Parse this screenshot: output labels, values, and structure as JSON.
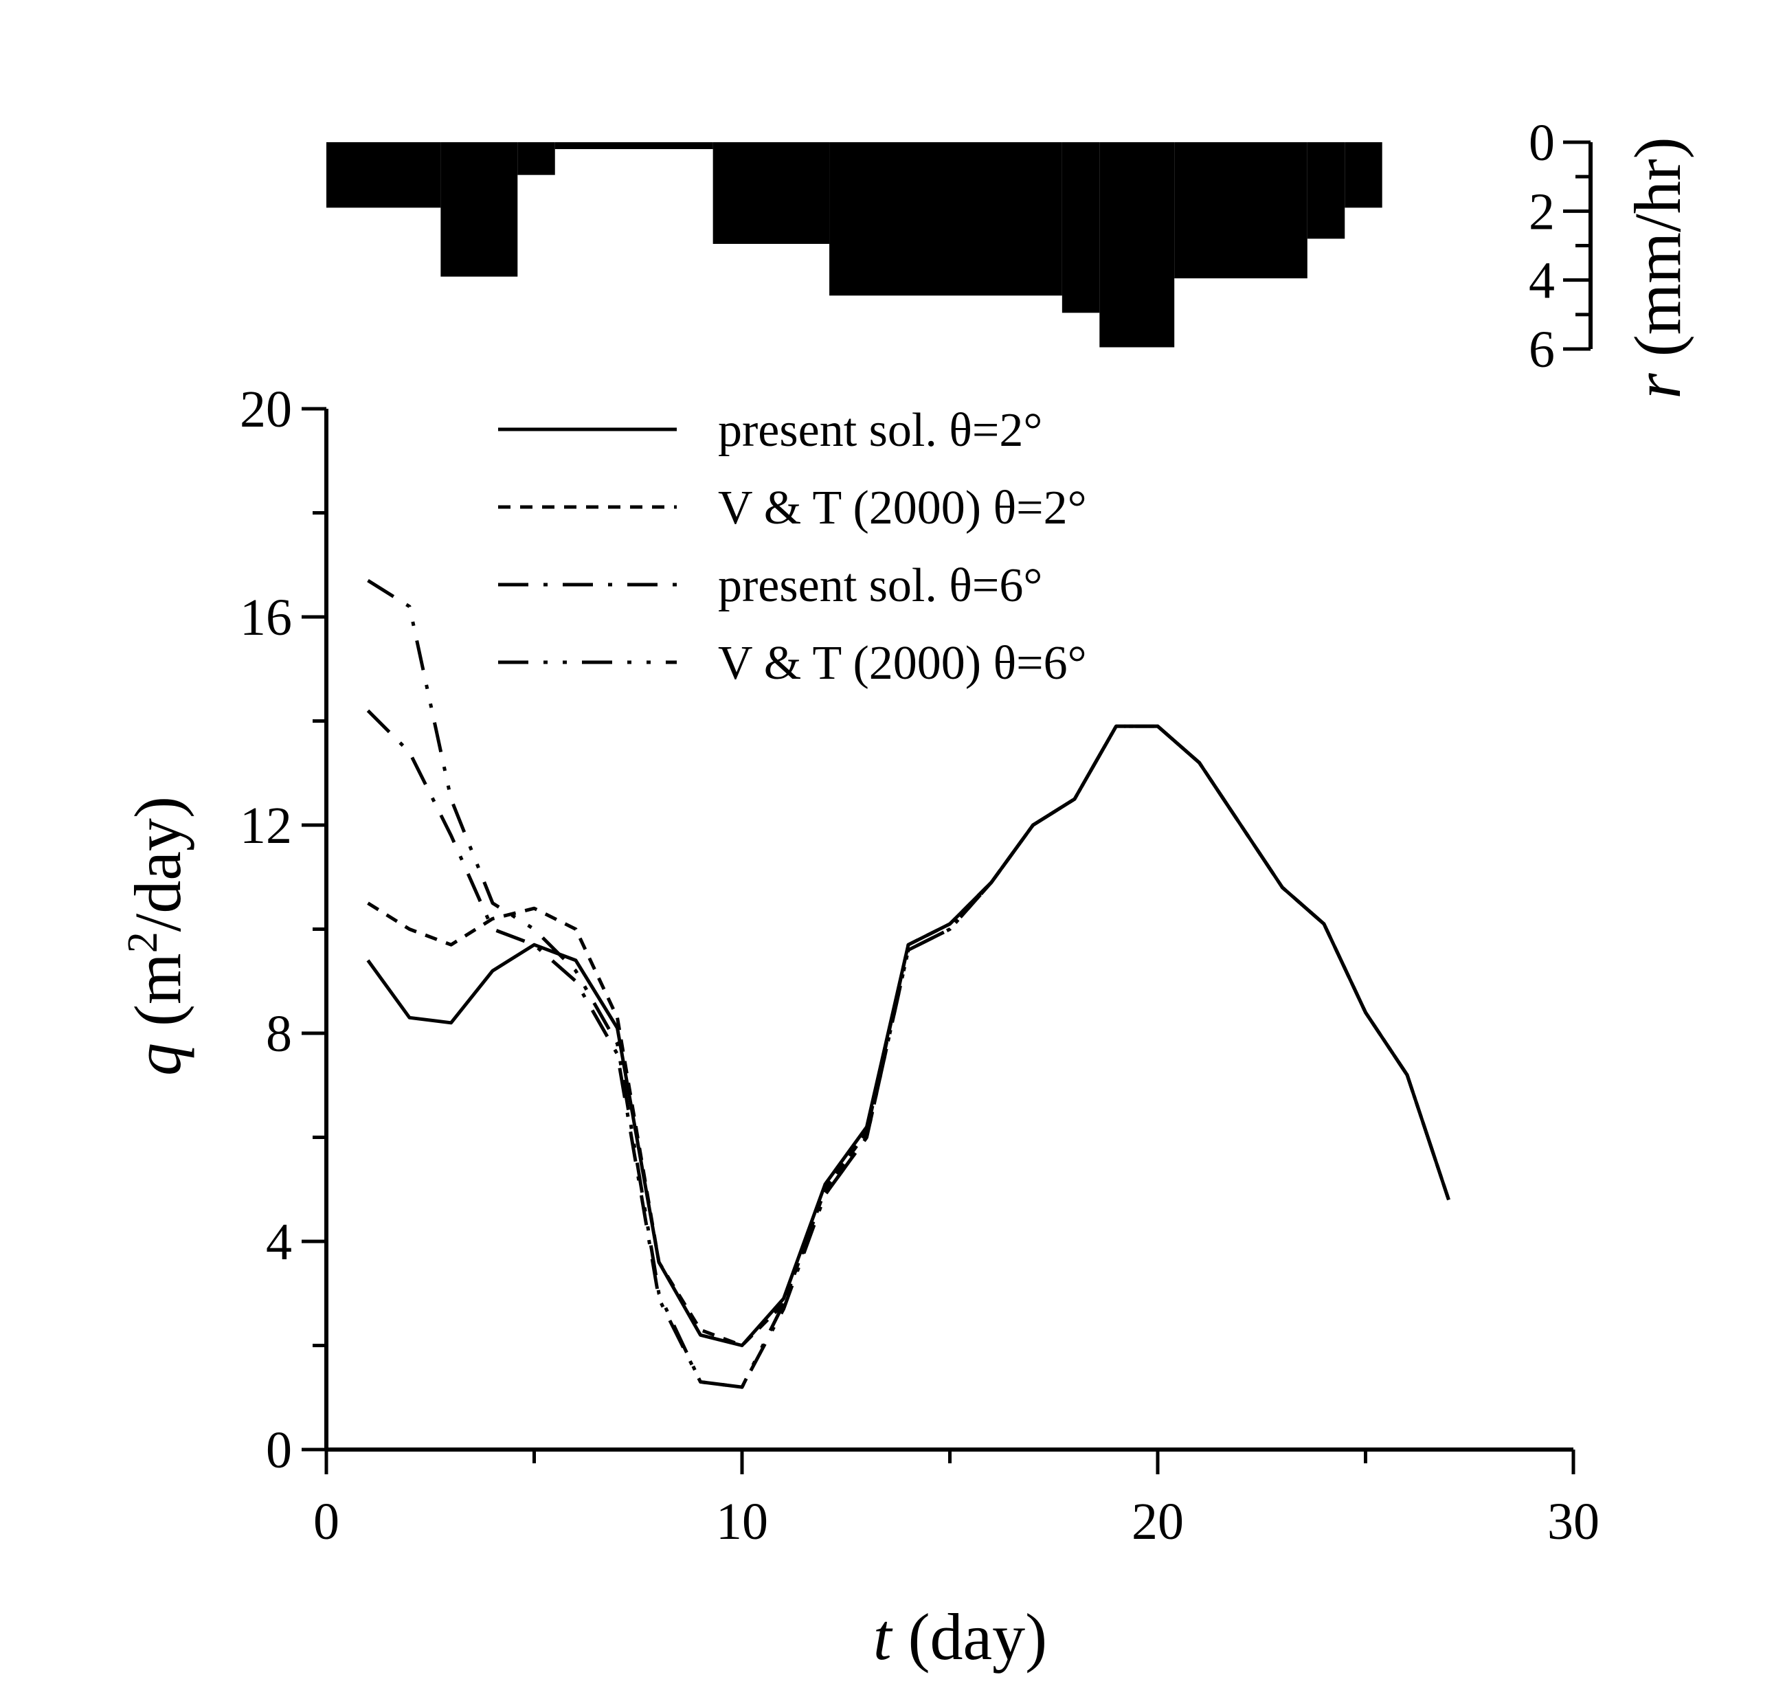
{
  "chart_data": [
    {
      "type": "bar",
      "panel": "rainfall-hyetograph",
      "ylabel_var": "r",
      "ylabel_unit": " (mm/hr)",
      "ylim": [
        0,
        6
      ],
      "yticks": [
        0,
        2,
        4,
        6
      ],
      "inverted": true,
      "bars": [
        {
          "t0": 0,
          "t1": 2.75,
          "value": 1.9
        },
        {
          "t0": 2.75,
          "t1": 4.6,
          "value": 3.9
        },
        {
          "t0": 4.6,
          "t1": 5.5,
          "value": 0.95
        },
        {
          "t0": 5.5,
          "t1": 9.3,
          "value": 0.2
        },
        {
          "t0": 9.3,
          "t1": 12.1,
          "value": 2.95
        },
        {
          "t0": 12.1,
          "t1": 17.7,
          "value": 4.45
        },
        {
          "t0": 17.7,
          "t1": 18.6,
          "value": 4.95
        },
        {
          "t0": 18.6,
          "t1": 20.4,
          "value": 5.95
        },
        {
          "t0": 20.4,
          "t1": 23.6,
          "value": 3.95
        },
        {
          "t0": 23.6,
          "t1": 24.5,
          "value": 2.8
        },
        {
          "t0": 24.5,
          "t1": 25.4,
          "value": 1.9
        }
      ]
    },
    {
      "type": "line",
      "panel": "discharge",
      "xlabel_var": "t",
      "xlabel_unit": " (day)",
      "ylabel_var": "q",
      "ylabel_unit_pre": " (m",
      "ylabel_unit_sup": "2",
      "ylabel_unit_post": "/day)",
      "xlim": [
        0,
        30
      ],
      "ylim": [
        0,
        20
      ],
      "xticks": [
        0,
        10,
        20,
        30
      ],
      "yticks": [
        0,
        4,
        8,
        12,
        16,
        20
      ],
      "series": [
        {
          "name": "present sol. θ=2°",
          "dash": "solid",
          "x": [
            1,
            2,
            3,
            4,
            5,
            6,
            7,
            8,
            9,
            10,
            11,
            12,
            13,
            14,
            15,
            16,
            17,
            18,
            19,
            20,
            21,
            22,
            23,
            24,
            25,
            26,
            27
          ],
          "y": [
            9.4,
            8.3,
            8.2,
            9.2,
            9.7,
            9.4,
            8.1,
            3.6,
            2.2,
            2.0,
            2.9,
            5.1,
            6.2,
            9.7,
            10.1,
            10.9,
            12.0,
            12.5,
            13.9,
            13.9,
            13.2,
            12.0,
            10.8,
            10.1,
            8.4,
            7.2,
            4.8
          ]
        },
        {
          "name": "V & T (2000) θ=2°",
          "dash": "dashed",
          "x": [
            1,
            2,
            3,
            4,
            5,
            6,
            7,
            8,
            9,
            10,
            11,
            12,
            13,
            14,
            15,
            16,
            17,
            18,
            19,
            20,
            21,
            22,
            23,
            24,
            25,
            26,
            27
          ],
          "y": [
            10.5,
            10.0,
            9.7,
            10.2,
            10.4,
            10.0,
            8.3,
            3.6,
            2.3,
            2.0,
            2.8,
            5.0,
            6.1,
            9.7,
            10.1,
            10.9,
            12.0,
            12.5,
            13.9,
            13.9,
            13.2,
            12.0,
            10.8,
            10.1,
            8.4,
            7.2,
            4.8
          ]
        },
        {
          "name": "present sol. θ=6°",
          "dash": "dashdot",
          "x": [
            1,
            2,
            3,
            4,
            5,
            6,
            7,
            8,
            9,
            10,
            11,
            12,
            13,
            14,
            15,
            16,
            17,
            18,
            19,
            20,
            21,
            22,
            23,
            24,
            25,
            26,
            27
          ],
          "y": [
            14.2,
            13.4,
            11.8,
            10.0,
            9.7,
            9.0,
            7.6,
            2.9,
            1.3,
            1.2,
            2.7,
            4.9,
            6.0,
            9.6,
            10.0,
            10.9,
            12.0,
            12.5,
            13.9,
            13.9,
            13.2,
            12.0,
            10.8,
            10.1,
            8.4,
            7.2,
            4.8
          ]
        },
        {
          "name": "V & T (2000) θ=6°",
          "dash": "dashdotdot",
          "x": [
            1,
            2,
            3,
            4,
            5,
            6,
            7,
            8,
            9,
            10,
            11,
            12,
            13,
            14,
            15,
            16,
            17,
            18,
            19,
            20,
            21,
            22,
            23,
            24,
            25,
            26,
            27
          ],
          "y": [
            16.7,
            16.2,
            12.5,
            10.5,
            10.0,
            9.2,
            7.8,
            3.0,
            1.3,
            1.2,
            2.8,
            4.9,
            6.0,
            9.6,
            10.0,
            10.9,
            12.0,
            12.5,
            13.9,
            13.9,
            13.2,
            12.0,
            10.8,
            10.1,
            8.4,
            7.2,
            4.8
          ]
        }
      ]
    }
  ]
}
